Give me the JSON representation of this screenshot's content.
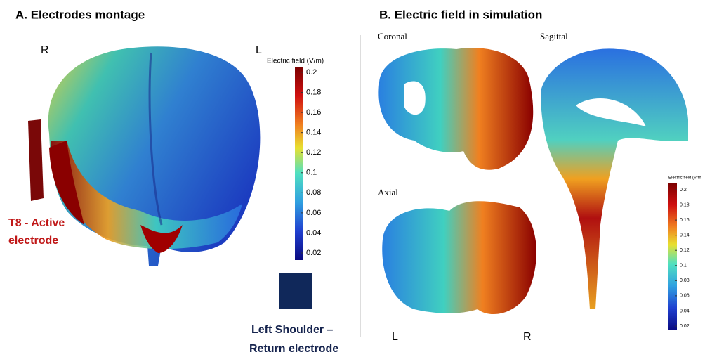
{
  "panel_a": {
    "title": "A. Electrodes montage",
    "label_right": "R",
    "label_left": "L",
    "colorbar": {
      "title": "Electric field (V/m)",
      "ticks": [
        "0.2",
        "0.18",
        "0.16",
        "0.14",
        "0.12",
        "0.1",
        "0.08",
        "0.06",
        "0.04",
        "0.02"
      ]
    },
    "active_electrode": [
      "T8 - Active",
      "electrode"
    ],
    "return_electrode": [
      "Left Shoulder –",
      "Return electrode"
    ]
  },
  "panel_b": {
    "title": "B. Electric field in simulation",
    "views": [
      "Coronal",
      "Sagittal",
      "Axial"
    ],
    "colorbar": {
      "title": "Electric field (V/m",
      "ticks": [
        "0.2",
        "0.18",
        "0.16",
        "0.14",
        "0.12",
        "0.1",
        "0.08",
        "0.06",
        "0.04",
        "0.02"
      ]
    },
    "orientation": [
      "L",
      "R"
    ]
  }
}
